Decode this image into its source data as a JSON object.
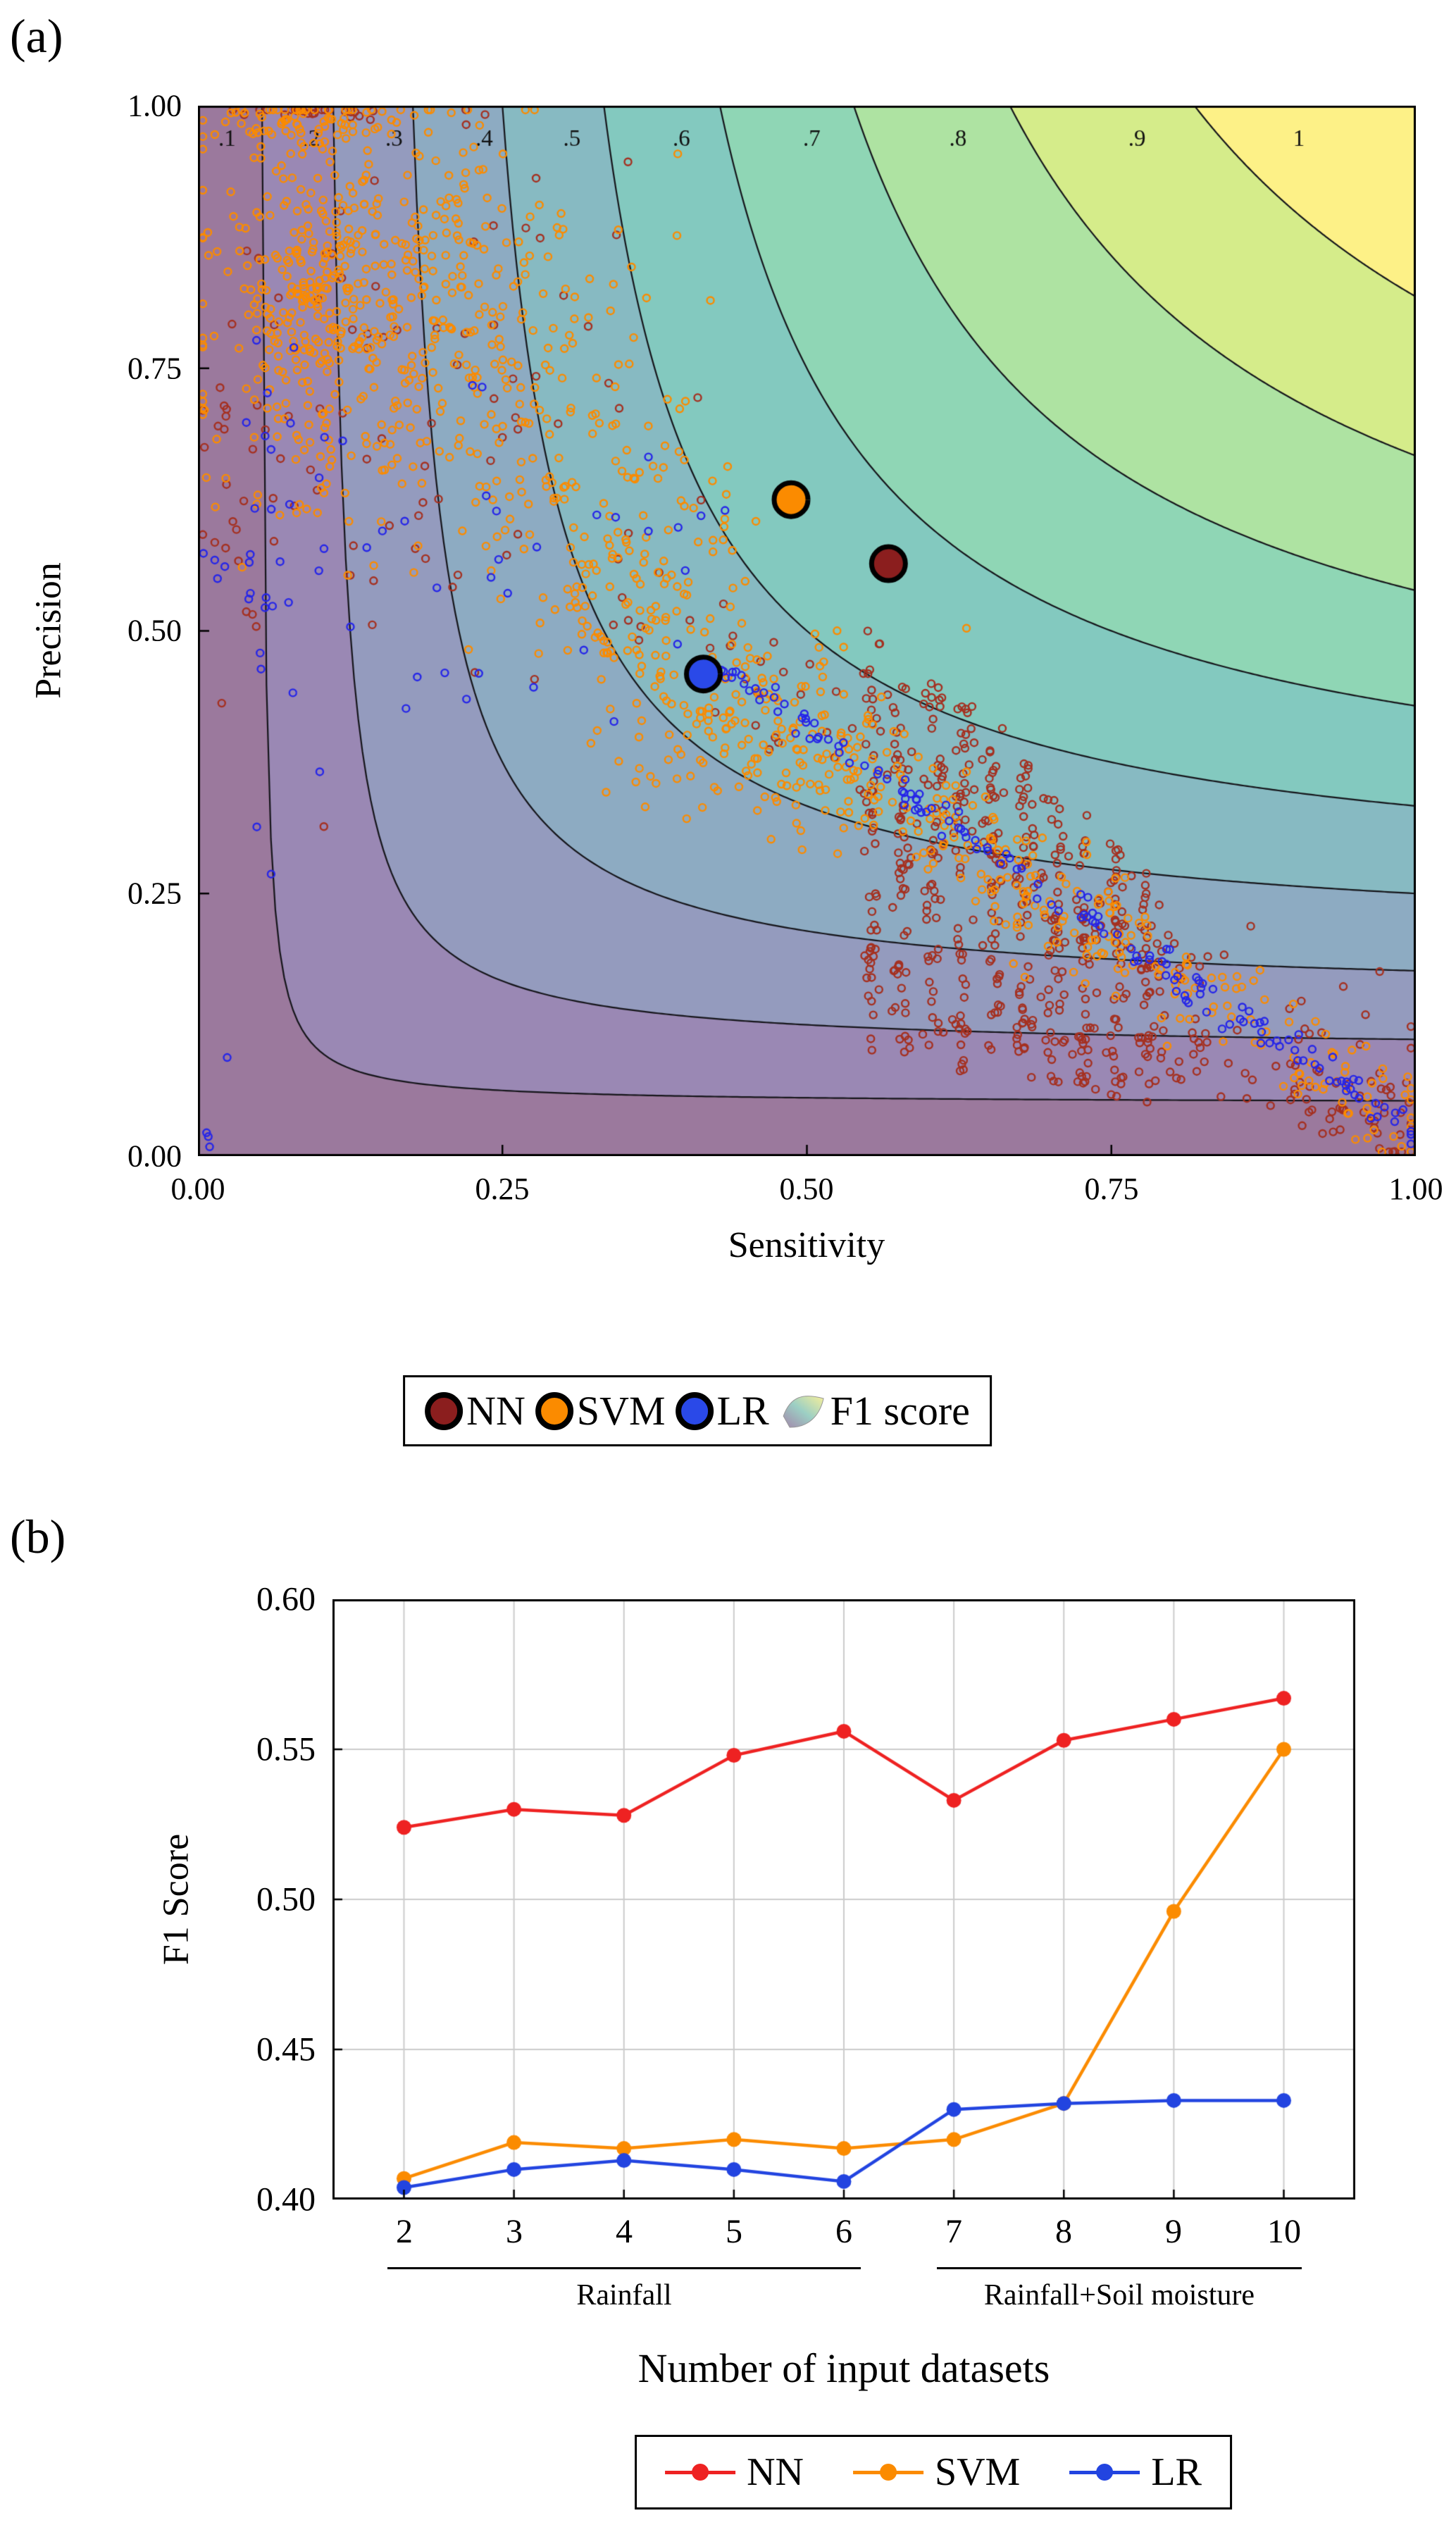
{
  "panels": {
    "a_label": "(a)",
    "b_label": "(b)"
  },
  "legend_a": {
    "items": [
      {
        "label": "NN",
        "color": "#8b1e1e"
      },
      {
        "label": "SVM",
        "color": "#fb8b00"
      },
      {
        "label": "LR",
        "color": "#2a49e8"
      },
      {
        "label": "F1 score",
        "icon": "f1-surface"
      }
    ]
  },
  "chart_data": [
    {
      "id": "panel-a",
      "type": "scatter",
      "xlabel": "Sensitivity",
      "ylabel": "Precision",
      "xlim": [
        0,
        1
      ],
      "ylim": [
        0,
        1
      ],
      "x_ticks": [
        0,
        0.25,
        0.5,
        0.75,
        1
      ],
      "y_ticks": [
        1,
        0.75,
        0.5,
        0.25,
        0
      ],
      "x_tick_labels": [
        "0.00",
        "0.25",
        "0.50",
        "0.75",
        "1.00"
      ],
      "y_tick_labels": [
        "1.00",
        "0.75",
        "0.50",
        "0.25",
        "0.00"
      ],
      "background": {
        "kind": "f1_score_filled_contour",
        "formula": "F1 = 2*x*y/(x+y)",
        "levels": [
          0.1,
          0.2,
          0.3,
          0.4,
          0.5,
          0.6,
          0.7,
          0.8,
          0.9,
          1.0
        ],
        "band_colors": [
          "#9b799d",
          "#9a88b4",
          "#949bbe",
          "#8dabc2",
          "#87bac2",
          "#83c9bf",
          "#8fd6b5",
          "#aee3a2",
          "#d5ec8a",
          "#fdf187"
        ],
        "line_color": "#15151a",
        "label_y": 0.962,
        "labels": [
          {
            "text": ".1",
            "x": 0.024
          },
          {
            "text": ".2",
            "x": 0.093
          },
          {
            "text": ".3",
            "x": 0.161
          },
          {
            "text": ".4",
            "x": 0.235
          },
          {
            "text": ".5",
            "x": 0.307
          },
          {
            "text": ".6",
            "x": 0.397
          },
          {
            "text": ".7",
            "x": 0.504
          },
          {
            "text": ".8",
            "x": 0.624
          },
          {
            "text": ".9",
            "x": 0.771
          },
          {
            "text": "1",
            "x": 0.904
          }
        ]
      },
      "scatter": {
        "seed": 42,
        "point_radius": 5,
        "groups": [
          {
            "name": "NN",
            "color": "#a53020",
            "clusters": [
              {
                "kind": "gauss",
                "cx": 0.17,
                "cy": 0.74,
                "sx": 0.1,
                "sy": 0.13,
                "n": 80
              },
              {
                "kind": "band",
                "x1": 0.33,
                "y1": 0.55,
                "x2": 1.0,
                "y2": 0.04,
                "jitter": 0.035,
                "n": 130
              },
              {
                "kind": "vstripe",
                "x": 0.553,
                "ylo": 0.1,
                "yhi": 0.5,
                "n": 50
              },
              {
                "kind": "vstripe",
                "x": 0.578,
                "ylo": 0.09,
                "yhi": 0.47,
                "n": 50
              },
              {
                "kind": "vstripe",
                "x": 0.603,
                "ylo": 0.09,
                "yhi": 0.45,
                "n": 48
              },
              {
                "kind": "vstripe",
                "x": 0.628,
                "ylo": 0.08,
                "yhi": 0.43,
                "n": 48
              },
              {
                "kind": "vstripe",
                "x": 0.653,
                "ylo": 0.08,
                "yhi": 0.41,
                "n": 46
              },
              {
                "kind": "vstripe",
                "x": 0.678,
                "ylo": 0.07,
                "yhi": 0.38,
                "n": 46
              },
              {
                "kind": "vstripe",
                "x": 0.703,
                "ylo": 0.07,
                "yhi": 0.35,
                "n": 44
              },
              {
                "kind": "vstripe",
                "x": 0.728,
                "ylo": 0.06,
                "yhi": 0.33,
                "n": 42
              },
              {
                "kind": "vstripe",
                "x": 0.755,
                "ylo": 0.05,
                "yhi": 0.3,
                "n": 40
              },
              {
                "kind": "vstripe",
                "x": 0.78,
                "ylo": 0.05,
                "yhi": 0.27,
                "n": 36
              },
              {
                "kind": "band",
                "x1": 0.78,
                "y1": 0.1,
                "x2": 1.0,
                "y2": 0.02,
                "jitter": 0.02,
                "n": 60
              },
              {
                "kind": "gauss",
                "cx": 0.1,
                "cy": 0.995,
                "sx": 0.04,
                "sy": 0.004,
                "n": 25
              },
              {
                "kind": "gauss",
                "cx": 0.035,
                "cy": 0.63,
                "sx": 0.015,
                "sy": 0.12,
                "n": 20
              }
            ]
          },
          {
            "name": "SVM",
            "color": "#fb8b00",
            "clusters": [
              {
                "kind": "gauss",
                "cx": 0.17,
                "cy": 0.8,
                "sx": 0.085,
                "sy": 0.1,
                "n": 430
              },
              {
                "kind": "gauss",
                "cx": 0.09,
                "cy": 0.82,
                "sx": 0.025,
                "sy": 0.09,
                "n": 150
              },
              {
                "kind": "gauss",
                "cx": 0.1,
                "cy": 0.985,
                "sx": 0.05,
                "sy": 0.012,
                "n": 60
              },
              {
                "kind": "gauss",
                "cx": 0.33,
                "cy": 0.6,
                "sx": 0.06,
                "sy": 0.07,
                "n": 120
              },
              {
                "kind": "band",
                "x1": 0.3,
                "y1": 0.53,
                "x2": 1.0,
                "y2": 0.03,
                "jitter": 0.028,
                "n": 330
              },
              {
                "kind": "gauss",
                "cx": 0.46,
                "cy": 0.4,
                "sx": 0.06,
                "sy": 0.05,
                "n": 110
              }
            ]
          },
          {
            "name": "LR",
            "color": "#2626e8",
            "clusters": [
              {
                "kind": "gauss",
                "cx": 0.05,
                "cy": 0.55,
                "sx": 0.02,
                "sy": 0.15,
                "n": 30
              },
              {
                "kind": "gauss",
                "cx": 0.28,
                "cy": 0.56,
                "sx": 0.09,
                "sy": 0.09,
                "n": 35
              },
              {
                "kind": "band",
                "x1": 0.42,
                "y1": 0.47,
                "x2": 1.0,
                "y2": 0.02,
                "jitter": 0.008,
                "n": 150
              },
              {
                "kind": "gauss",
                "cx": 0.006,
                "cy": 0.01,
                "sx": 0.003,
                "sy": 0.006,
                "n": 3
              }
            ]
          }
        ],
        "mean_markers": [
          {
            "name": "NN",
            "x": 0.567,
            "y": 0.564,
            "fill": "#8b1e1e"
          },
          {
            "name": "SVM",
            "x": 0.487,
            "y": 0.625,
            "fill": "#fb8b00"
          },
          {
            "name": "LR",
            "x": 0.415,
            "y": 0.459,
            "fill": "#2a49e8"
          }
        ]
      }
    },
    {
      "id": "panel-b",
      "type": "line",
      "xlabel": "Number of input datasets",
      "ylabel": "F1 Score",
      "categories": [
        2,
        3,
        4,
        5,
        6,
        7,
        8,
        9,
        10
      ],
      "x_tick_labels": [
        "2",
        "3",
        "4",
        "5",
        "6",
        "7",
        "8",
        "9",
        "10"
      ],
      "y_tick_labels": [
        "0.60",
        "0.55",
        "0.50",
        "0.45",
        "0.40"
      ],
      "y_ticks": [
        0.6,
        0.55,
        0.5,
        0.45,
        0.4
      ],
      "ylim": [
        0.4,
        0.6
      ],
      "grid_y": [
        0.45,
        0.5,
        0.55
      ],
      "grid_color": "#cbcbcb",
      "series": [
        {
          "name": "NN",
          "color": "#ee2222",
          "values": [
            0.524,
            0.53,
            0.528,
            0.548,
            0.556,
            0.533,
            0.553,
            0.56,
            0.567
          ]
        },
        {
          "name": "SVM",
          "color": "#fb8b00",
          "values": [
            0.407,
            0.419,
            0.417,
            0.42,
            0.417,
            0.42,
            0.432,
            0.496,
            0.55
          ]
        },
        {
          "name": "LR",
          "color": "#2244e0",
          "values": [
            0.404,
            0.41,
            0.413,
            0.41,
            0.406,
            0.43,
            0.432,
            0.433,
            0.433
          ]
        }
      ],
      "groups": [
        {
          "label": "Rainfall",
          "from": 2,
          "to": 6
        },
        {
          "label": "Rainfall+Soil moisture",
          "from": 7,
          "to": 10
        }
      ]
    }
  ]
}
